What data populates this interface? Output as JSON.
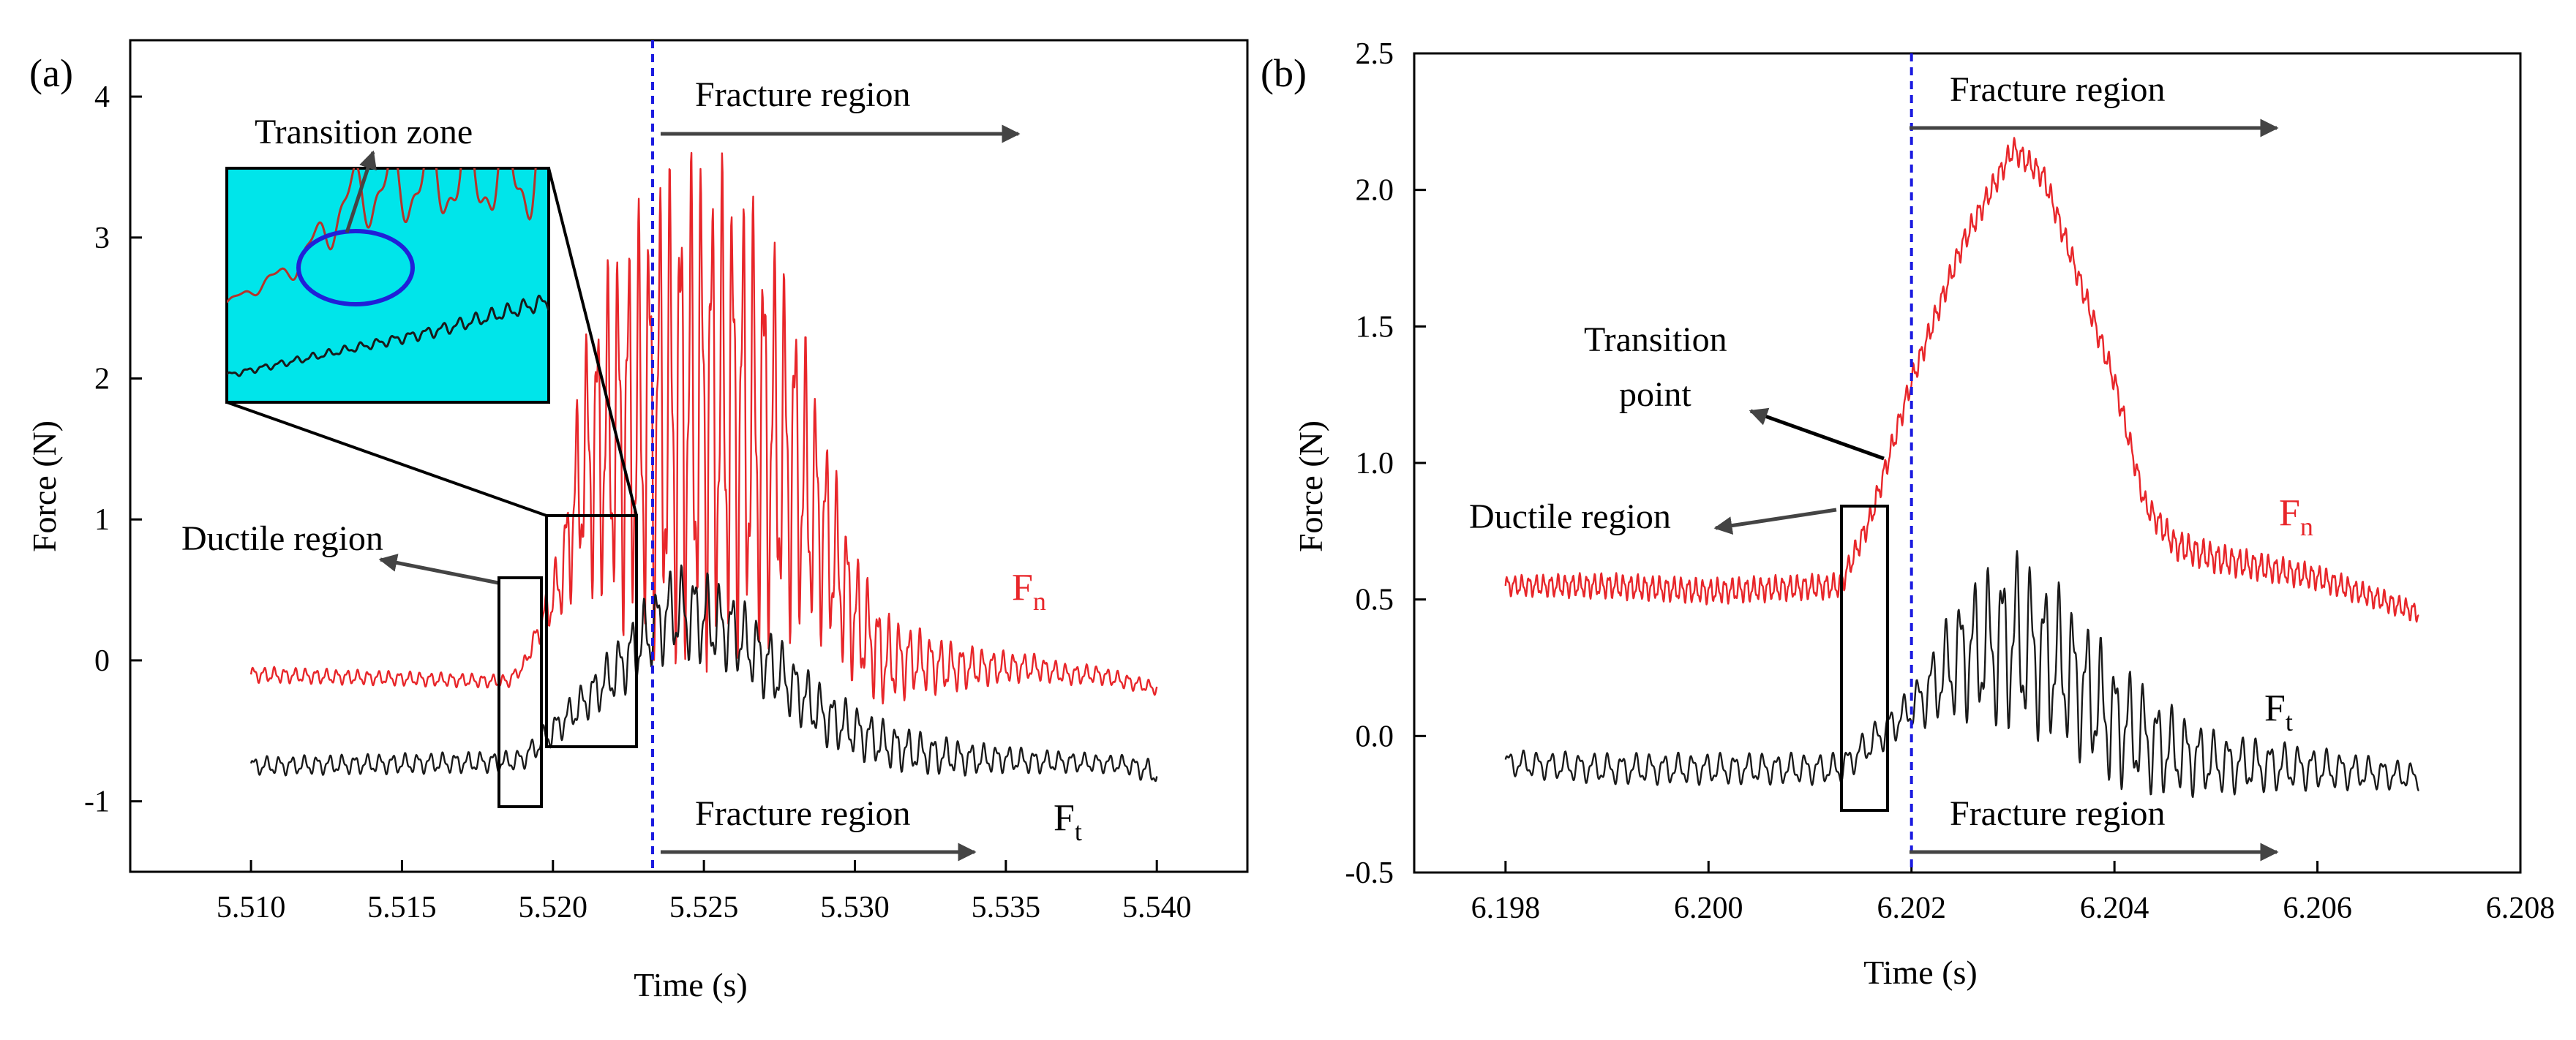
{
  "chart_data": [
    {
      "type": "line",
      "panel_label": "(a)",
      "xlabel": "Time (s)",
      "ylabel": "Force (N)",
      "xlim": [
        5.506,
        5.543
      ],
      "ylim": [
        -1.5,
        4.4
      ],
      "x_ticks": [
        5.51,
        5.515,
        5.52,
        5.525,
        5.53,
        5.535,
        5.54
      ],
      "x_tick_labels": [
        "5.510",
        "5.515",
        "5.520",
        "5.525",
        "5.530",
        "5.535",
        "5.540"
      ],
      "y_ticks": [
        -1,
        0,
        1,
        2,
        3,
        4
      ],
      "y_tick_labels": [
        "-1",
        "0",
        "1",
        "2",
        "3",
        "4"
      ],
      "grid": false,
      "series": [
        {
          "name": "F_n",
          "label_main": "F",
          "label_sub": "n",
          "color": "#e8262a",
          "envelope": {
            "x": [
              5.51,
              5.5185,
              5.519,
              5.5195,
              5.5203,
              5.521,
              5.522,
              5.5232,
              5.524,
              5.525,
              5.526,
              5.527,
              5.528,
              5.529,
              5.53,
              5.531,
              5.532,
              5.533,
              5.534,
              5.535,
              5.536,
              5.537,
              5.538,
              5.539,
              5.54
            ],
            "mid": [
              -0.1,
              -0.15,
              -0.05,
              0.2,
              0.6,
              1.4,
              1.6,
              1.7,
              1.75,
              1.8,
              1.75,
              1.6,
              1.4,
              0.9,
              0.3,
              0.0,
              0.0,
              -0.05,
              -0.05,
              -0.05,
              -0.05,
              -0.1,
              -0.1,
              -0.15,
              -0.2
            ],
            "amp": [
              0.06,
              0.05,
              0.05,
              0.1,
              0.3,
              0.9,
              1.4,
              1.7,
              1.9,
              1.9,
              1.8,
              1.6,
              1.3,
              0.8,
              0.5,
              0.35,
              0.25,
              0.2,
              0.15,
              0.12,
              0.1,
              0.08,
              0.07,
              0.06,
              0.05
            ]
          }
        },
        {
          "name": "F_t",
          "label_main": "F",
          "label_sub": "t",
          "color": "#1a1a1a",
          "envelope": {
            "x": [
              5.51,
              5.5185,
              5.519,
              5.52,
              5.521,
              5.522,
              5.5232,
              5.524,
              5.525,
              5.526,
              5.527,
              5.528,
              5.529,
              5.53,
              5.531,
              5.532,
              5.533,
              5.534,
              5.535,
              5.536,
              5.537,
              5.538,
              5.539,
              5.54
            ],
            "mid": [
              -0.75,
              -0.72,
              -0.7,
              -0.5,
              -0.3,
              -0.1,
              0.2,
              0.35,
              0.3,
              0.2,
              0.0,
              -0.2,
              -0.4,
              -0.5,
              -0.6,
              -0.65,
              -0.68,
              -0.7,
              -0.7,
              -0.72,
              -0.72,
              -0.73,
              -0.74,
              -0.8
            ],
            "amp": [
              0.07,
              0.08,
              0.08,
              0.12,
              0.15,
              0.22,
              0.3,
              0.35,
              0.35,
              0.3,
              0.28,
              0.25,
              0.22,
              0.2,
              0.18,
              0.16,
              0.14,
              0.12,
              0.1,
              0.09,
              0.08,
              0.07,
              0.07,
              0.1
            ]
          }
        }
      ],
      "vline_x": 5.5233,
      "annotations": {
        "fracture_top": "Fracture region",
        "fracture_bottom": "Fracture region",
        "ductile": "Ductile region",
        "transition": "Transition zone"
      }
    },
    {
      "type": "line",
      "panel_label": "(b)",
      "xlabel": "Time (s)",
      "ylabel": "Force (N)",
      "xlim": [
        6.1971,
        6.208
      ],
      "ylim": [
        -0.5,
        2.5
      ],
      "x_ticks": [
        6.198,
        6.2,
        6.202,
        6.204,
        6.206,
        6.208
      ],
      "x_tick_labels": [
        "6.198",
        "6.200",
        "6.202",
        "6.204",
        "6.206",
        "6.208"
      ],
      "y_ticks": [
        -0.5,
        0.0,
        0.5,
        1.0,
        1.5,
        2.0,
        2.5
      ],
      "y_tick_labels": [
        "-0.5",
        "0.0",
        "0.5",
        "1.0",
        "1.5",
        "2.0",
        "2.5"
      ],
      "grid": false,
      "series": [
        {
          "name": "F_n",
          "label_main": "F",
          "label_sub": "n",
          "color": "#e8262a",
          "envelope": {
            "x": [
              6.198,
              6.199,
              6.2,
              6.2013,
              6.2016,
              6.202,
              6.2025,
              6.203,
              6.2033,
              6.204,
              6.2043,
              6.2046,
              6.205,
              6.206,
              6.207
            ],
            "mid": [
              0.55,
              0.55,
              0.53,
              0.55,
              0.8,
              1.3,
              1.8,
              2.15,
              2.05,
              1.3,
              0.85,
              0.7,
              0.65,
              0.58,
              0.45
            ],
            "amp": [
              0.04,
              0.05,
              0.05,
              0.05,
              0.05,
              0.05,
              0.05,
              0.05,
              0.05,
              0.05,
              0.05,
              0.06,
              0.06,
              0.05,
              0.04
            ]
          }
        },
        {
          "name": "F_t",
          "label_main": "F",
          "label_sub": "t",
          "color": "#1a1a1a",
          "envelope": {
            "x": [
              6.198,
              6.199,
              6.2,
              6.2013,
              6.202,
              6.2025,
              6.203,
              6.2035,
              6.204,
              6.2045,
              6.205,
              6.206,
              6.207
            ],
            "mid": [
              -0.1,
              -0.12,
              -0.12,
              -0.12,
              0.1,
              0.3,
              0.35,
              0.25,
              0.05,
              -0.05,
              -0.1,
              -0.12,
              -0.15
            ],
            "amp": [
              0.05,
              0.06,
              0.06,
              0.06,
              0.08,
              0.25,
              0.35,
              0.3,
              0.25,
              0.18,
              0.12,
              0.08,
              0.05
            ]
          }
        }
      ],
      "vline_x": 6.202,
      "annotations": {
        "fracture_top": "Fracture region",
        "fracture_bottom": "Fracture region",
        "ductile": "Ductile region",
        "transition_line1": "Transition",
        "transition_line2": "point"
      }
    }
  ]
}
